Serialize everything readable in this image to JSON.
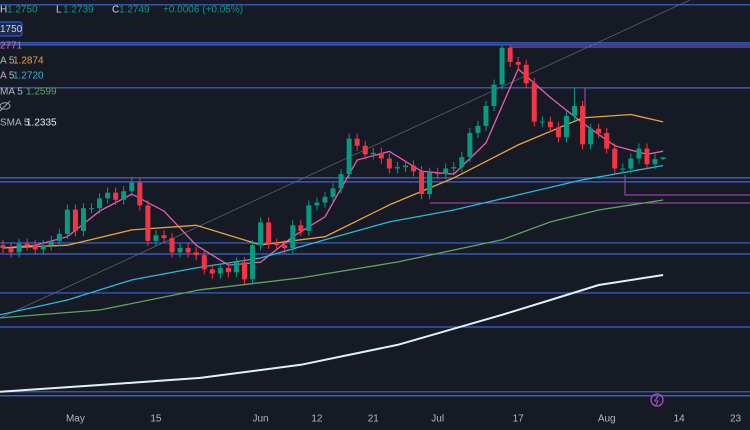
{
  "chart_data": {
    "type": "candlestick",
    "header": [
      {
        "key": "H",
        "value": "1.2750"
      },
      {
        "key": "L",
        "value": "1.2739"
      },
      {
        "key": "C",
        "value": "1.2749"
      }
    ],
    "header_change": "+0.0006 (+0.05%)",
    "price_box": "1750",
    "up_color": "#089981",
    "down_color": "#f23645",
    "open": [
      1.244,
      1.243,
      1.2415,
      1.2445,
      1.244,
      1.2425,
      1.244,
      1.2455,
      1.248,
      1.2565,
      1.249,
      1.257,
      1.257,
      1.2605,
      1.2625,
      1.26,
      1.263,
      1.266,
      1.258,
      1.2455,
      1.2475,
      1.2465,
      1.2415,
      1.243,
      1.2415,
      1.2405,
      1.2355,
      1.234,
      1.236,
      1.2345,
      1.238,
      1.232,
      1.244,
      1.252,
      1.2445,
      1.244,
      1.243,
      1.251,
      1.249,
      1.258,
      1.259,
      1.261,
      1.264,
      1.269,
      1.2815,
      1.279,
      1.276,
      1.2765,
      1.2745,
      1.271,
      1.2715,
      1.272,
      1.27,
      1.262,
      1.2695,
      1.269,
      1.271,
      1.2715,
      1.275,
      1.2835,
      1.286,
      1.293,
      1.3005,
      1.3135,
      1.3085,
      1.3075,
      1.301,
      1.2875,
      1.2875,
      1.2855,
      1.282,
      1.2895,
      1.293,
      1.2795,
      1.285,
      1.2835,
      1.278,
      1.271,
      1.271,
      1.2745,
      1.278,
      1.2725,
      1.2743
    ],
    "high": [
      1.2458,
      1.2448,
      1.2463,
      1.2463,
      1.2458,
      1.2458,
      1.2473,
      1.2498,
      1.2583,
      1.2583,
      1.2588,
      1.2588,
      1.2623,
      1.2643,
      1.2643,
      1.2648,
      1.268,
      1.2678,
      1.2598,
      1.2493,
      1.2493,
      1.2483,
      1.2448,
      1.2448,
      1.2433,
      1.2423,
      1.2373,
      1.2378,
      1.2378,
      1.2398,
      1.2398,
      1.2458,
      1.2538,
      1.2538,
      1.2463,
      1.2458,
      1.2528,
      1.2528,
      1.2598,
      1.2608,
      1.2628,
      1.2658,
      1.2708,
      1.2833,
      1.2833,
      1.2808,
      1.2783,
      1.2783,
      1.2763,
      1.2733,
      1.2738,
      1.2738,
      1.2718,
      1.2713,
      1.2713,
      1.2728,
      1.2733,
      1.2768,
      1.2853,
      1.2878,
      1.2948,
      1.3023,
      1.3142,
      1.3142,
      1.3103,
      1.3093,
      1.3028,
      1.2893,
      1.2893,
      1.2873,
      1.2913,
      1.2995,
      1.2948,
      1.2868,
      1.2868,
      1.2853,
      1.2798,
      1.2728,
      1.2763,
      1.2798,
      1.2798,
      1.2761,
      1.275
    ],
    "low": [
      1.2412,
      1.2397,
      1.2397,
      1.2422,
      1.2407,
      1.2407,
      1.2422,
      1.2437,
      1.2462,
      1.2472,
      1.2472,
      1.2552,
      1.2552,
      1.2587,
      1.2582,
      1.2582,
      1.2612,
      1.2562,
      1.2437,
      1.2437,
      1.2447,
      1.2397,
      1.2397,
      1.2397,
      1.2387,
      1.2337,
      1.2322,
      1.2322,
      1.2327,
      1.2327,
      1.2302,
      1.2302,
      1.2422,
      1.2427,
      1.2422,
      1.2412,
      1.2412,
      1.2472,
      1.2472,
      1.2562,
      1.2572,
      1.2592,
      1.2622,
      1.2672,
      1.2772,
      1.2742,
      1.2742,
      1.2727,
      1.2692,
      1.2692,
      1.2697,
      1.2682,
      1.2602,
      1.2602,
      1.2672,
      1.2672,
      1.2692,
      1.2697,
      1.2732,
      1.2817,
      1.2842,
      1.2912,
      1.2987,
      1.3067,
      1.3057,
      1.2992,
      1.2857,
      1.2857,
      1.2837,
      1.2802,
      1.2802,
      1.2877,
      1.2777,
      1.2777,
      1.2817,
      1.2762,
      1.2692,
      1.2692,
      1.2692,
      1.2727,
      1.2707,
      1.2707,
      1.2739
    ],
    "close": [
      1.243,
      1.2415,
      1.2445,
      1.244,
      1.2425,
      1.244,
      1.2455,
      1.248,
      1.2565,
      1.249,
      1.257,
      1.257,
      1.2605,
      1.2625,
      1.26,
      1.263,
      1.266,
      1.258,
      1.2455,
      1.2475,
      1.2465,
      1.2415,
      1.243,
      1.2415,
      1.2405,
      1.2355,
      1.234,
      1.236,
      1.2345,
      1.238,
      1.232,
      1.244,
      1.252,
      1.2445,
      1.244,
      1.243,
      1.251,
      1.249,
      1.258,
      1.259,
      1.261,
      1.264,
      1.269,
      1.2815,
      1.279,
      1.276,
      1.2765,
      1.2745,
      1.271,
      1.2715,
      1.272,
      1.27,
      1.262,
      1.2695,
      1.269,
      1.271,
      1.2715,
      1.275,
      1.2835,
      1.286,
      1.293,
      1.3005,
      1.3135,
      1.3085,
      1.3075,
      1.301,
      1.2875,
      1.2875,
      1.2855,
      1.282,
      1.2895,
      1.293,
      1.2795,
      1.285,
      1.2835,
      1.278,
      1.271,
      1.271,
      1.2745,
      1.278,
      1.2725,
      1.2743,
      1.2749
    ],
    "series": [
      {
        "legend_value": "2771",
        "color": "#e45fb4",
        "x": [
          0,
          4,
          8,
          12,
          16,
          20,
          24,
          28,
          32,
          36,
          40,
          44,
          48,
          52,
          56,
          60,
          64,
          68,
          72,
          76,
          80,
          82
        ],
        "values": [
          1.243,
          1.244,
          1.247,
          1.256,
          1.262,
          1.256,
          1.244,
          1.237,
          1.238,
          1.247,
          1.254,
          1.274,
          1.277,
          1.27,
          1.269,
          1.28,
          1.306,
          1.296,
          1.287,
          1.279,
          1.276,
          1.2771
        ]
      },
      {
        "name": "A 5",
        "legend_value": "1.2874",
        "color": "#e9a23b",
        "x": [
          0,
          8,
          16,
          24,
          32,
          40,
          48,
          56,
          64,
          72,
          78,
          82
        ],
        "values": [
          1.243,
          1.244,
          1.2494,
          1.251,
          1.2441,
          1.247,
          1.2582,
          1.2677,
          1.2793,
          1.2888,
          1.29,
          1.2874
        ]
      },
      {
        "name": "A 5",
        "legend_value": "1.2720",
        "color": "#2bb7d6",
        "x": [
          -0.4,
          8,
          16,
          24,
          32,
          40,
          48,
          56,
          64,
          72,
          82
        ],
        "values": [
          1.2195,
          1.2247,
          1.2318,
          1.236,
          1.2395,
          1.2459,
          1.2522,
          1.2564,
          1.2617,
          1.267,
          1.272
        ]
      },
      {
        "name": "MA 5",
        "legend_value": "1.2599",
        "color": "#5fa35f",
        "x": [
          -0.4,
          12,
          24.5,
          37,
          49,
          62,
          68,
          74,
          82
        ],
        "values": [
          1.2184,
          1.2212,
          1.2283,
          1.2325,
          1.2381,
          1.2459,
          1.2522,
          1.2564,
          1.2599
        ]
      },
      {
        "name": "SMA 5",
        "legend_value": "1.2335",
        "color": "#dff1f7",
        "x": [
          -0.4,
          12,
          24.5,
          37,
          49,
          62,
          68,
          74,
          82
        ],
        "values": [
          1.1924,
          1.1948,
          1.1973,
          1.2019,
          1.2089,
          1.2195,
          1.2247,
          1.23,
          1.2335
        ]
      }
    ],
    "hlines": [
      1.3286,
      1.3152,
      1.3145,
      1.2994,
      1.2677,
      1.2663,
      1.2448,
      1.2409,
      1.2272,
      1.2152,
      1.1924,
      1.191
    ],
    "hline_color": "#3f68d8",
    "xlim": [
      -0.37,
      92.8
    ],
    "ylim": [
      1.1867,
      1.3303
    ],
    "xticks": [
      {
        "value": 9,
        "label": "May"
      },
      {
        "value": 19,
        "label": "15"
      },
      {
        "value": 32,
        "label": "Jun"
      },
      {
        "value": 39,
        "label": "12"
      },
      {
        "value": 46,
        "label": "21"
      },
      {
        "value": 54,
        "label": "Jul"
      },
      {
        "value": 64,
        "label": "17"
      },
      {
        "value": 75,
        "label": "Aug"
      },
      {
        "value": 84,
        "label": "14"
      },
      {
        "value": 91,
        "label": "23"
      }
    ],
    "grid": false
  }
}
